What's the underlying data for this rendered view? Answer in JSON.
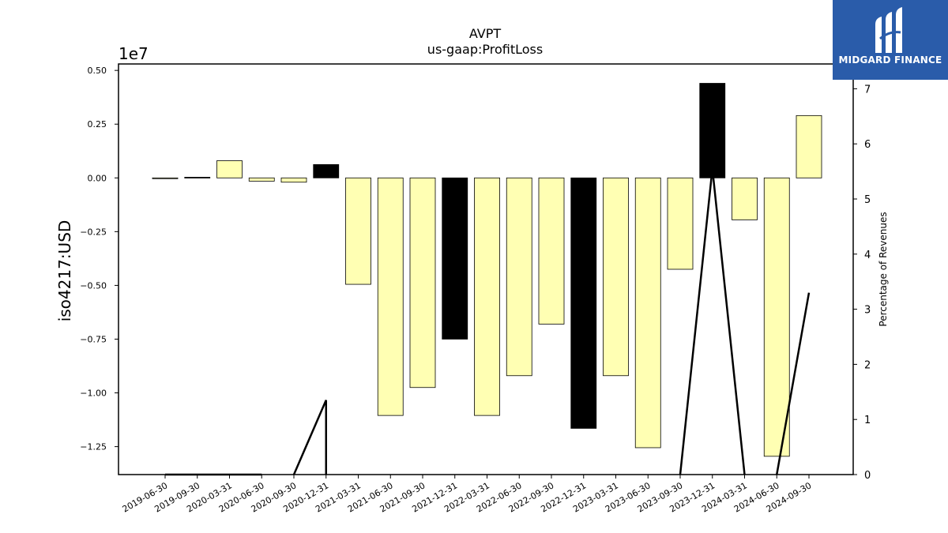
{
  "chart_data": {
    "type": "bar",
    "title": "AVPT",
    "subtitle": "us-gaap:ProfitLoss",
    "ylabel": "iso4217:USD",
    "y2label": "Percentage of Revenues",
    "y_scale_label": "1e7",
    "ylim": [
      -13800000,
      5300000
    ],
    "y2lim": [
      0,
      7.45
    ],
    "yticks": [
      0.5,
      0.25,
      0.0,
      -0.25,
      -0.5,
      -0.75,
      -1.0,
      -1.25
    ],
    "ytick_labels": [
      "0.50",
      "0.25",
      "0.00",
      "−0.25",
      "−0.50",
      "−0.75",
      "−1.00",
      "−1.25"
    ],
    "y2ticks": [
      0,
      1,
      2,
      3,
      4,
      5,
      6,
      7
    ],
    "y2tick_labels": [
      "0",
      "1",
      "2",
      "3",
      "4",
      "5",
      "6",
      "7"
    ],
    "categories": [
      "2019-06-30",
      "2019-09-30",
      "2020-03-31",
      "2020-06-30",
      "2020-09-30",
      "2020-12-31",
      "2021-03-31",
      "2021-06-30",
      "2021-09-30",
      "2021-12-31",
      "2022-03-31",
      "2022-06-30",
      "2022-09-30",
      "2022-12-31",
      "2023-03-31",
      "2023-06-30",
      "2023-09-30",
      "2023-12-31",
      "2024-03-31",
      "2024-06-30",
      "2024-09-30"
    ],
    "values": [
      -30000,
      30000,
      800000,
      -150000,
      -200000,
      620000,
      -4950000,
      -11050000,
      -9750000,
      -7500000,
      -11050000,
      -9200000,
      -6800000,
      -11650000,
      -9200000,
      -12550000,
      -4250000,
      4400000,
      -1950000,
      -12950000,
      2900000
    ],
    "bar_colors": [
      "#ffffb3",
      "#000000",
      "#ffffb3",
      "#ffffb3",
      "#ffffb3",
      "#000000",
      "#ffffb3",
      "#ffffb3",
      "#ffffb3",
      "#000000",
      "#ffffb3",
      "#ffffb3",
      "#ffffb3",
      "#000000",
      "#ffffb3",
      "#ffffb3",
      "#ffffb3",
      "#000000",
      "#ffffb3",
      "#ffffb3",
      "#ffffb3"
    ],
    "line_segments": [
      [
        [
          "2019-06-30",
          0.0
        ],
        [
          "2019-09-30",
          0.0
        ],
        [
          "2020-03-31",
          0.0
        ],
        [
          "2020-06-30",
          0.0
        ]
      ],
      [
        [
          "2020-09-30",
          0.0
        ],
        [
          "2020-12-31",
          1.35
        ],
        [
          "2020-12-31",
          0.0
        ]
      ],
      [
        [
          "2023-09-30",
          0.0
        ],
        [
          "2023-12-31",
          5.55
        ],
        [
          "2024-03-31",
          0.0
        ]
      ],
      [
        [
          "2024-06-30",
          0.0
        ],
        [
          "2024-09-30",
          3.3
        ]
      ]
    ]
  },
  "logo": {
    "text": "MIDGARD FINANCE",
    "bg": "#2a5caa"
  }
}
